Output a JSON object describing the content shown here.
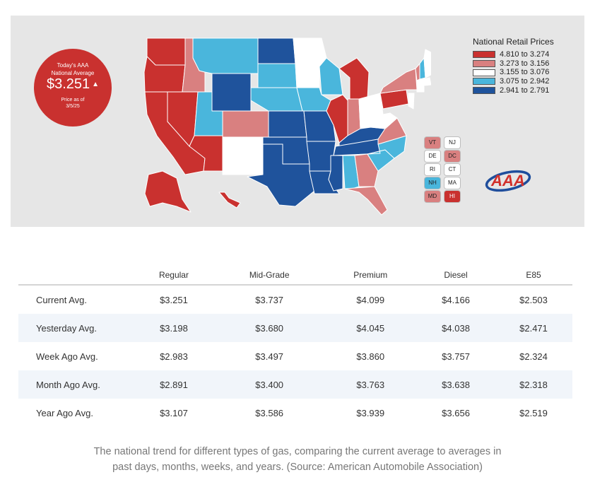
{
  "badge": {
    "line1": "Today's AAA",
    "line2": "National Average",
    "price": "$3.251",
    "trend_icon": "triangle-up-icon",
    "asof_line1": "Price as of",
    "asof_line2": "3/5/25"
  },
  "legend": {
    "title": "National Retail Prices",
    "items": [
      {
        "label": "4.810 to 3.274",
        "color": "#c9312f"
      },
      {
        "label": "3.273 to 3.156",
        "color": "#d98080"
      },
      {
        "label": "3.155 to 3.076",
        "color": "#ffffff"
      },
      {
        "label": "3.075 to 2.942",
        "color": "#4ab6dc"
      },
      {
        "label": "2.941 to 2.791",
        "color": "#1f539c"
      }
    ]
  },
  "map_data": {
    "price_bin_by_state": {
      "WA": 1,
      "OR": 1,
      "CA": 1,
      "NV": 1,
      "AZ": 1,
      "AK": 1,
      "HI": 1,
      "IL": 1,
      "MI": 1,
      "PA": 1,
      "ID": 2,
      "CO": 2,
      "IN": 2,
      "NY": 2,
      "VA": 2,
      "FL": 2,
      "GA": 2,
      "VT": 2,
      "DC": 2,
      "MD": 2,
      "MN": 3,
      "NM": 3,
      "OH": 3,
      "ME": 3,
      "NJ": 3,
      "DE": 3,
      "RI": 3,
      "CT": 3,
      "MA": 3,
      "WV": 3,
      "MT": 4,
      "UT": 4,
      "SD": 4,
      "NE": 4,
      "IA": 4,
      "WI": 4,
      "AL": 4,
      "NC": 4,
      "SC": 4,
      "NH": 4,
      "ND": 5,
      "WY": 5,
      "KS": 5,
      "OK": 5,
      "TX": 5,
      "MO": 5,
      "AR": 5,
      "LA": 5,
      "MS": 5,
      "TN": 5,
      "KY": 5
    },
    "small_states": [
      {
        "code": "VT",
        "bin": 2
      },
      {
        "code": "NJ",
        "bin": 3
      },
      {
        "code": "DE",
        "bin": 3
      },
      {
        "code": "DC",
        "bin": 2
      },
      {
        "code": "RI",
        "bin": 3
      },
      {
        "code": "CT",
        "bin": 3
      },
      {
        "code": "NH",
        "bin": 4
      },
      {
        "code": "MA",
        "bin": 3
      },
      {
        "code": "MD",
        "bin": 2
      },
      {
        "code": "HI",
        "bin": 1
      }
    ]
  },
  "logo": {
    "text": "AAA"
  },
  "table": {
    "columns": [
      "",
      "Regular",
      "Mid-Grade",
      "Premium",
      "Diesel",
      "E85"
    ],
    "rows": [
      [
        "Current Avg.",
        "$3.251",
        "$3.737",
        "$4.099",
        "$4.166",
        "$2.503"
      ],
      [
        "Yesterday Avg.",
        "$3.198",
        "$3.680",
        "$4.045",
        "$4.038",
        "$2.471"
      ],
      [
        "Week Ago Avg.",
        "$2.983",
        "$3.497",
        "$3.860",
        "$3.757",
        "$2.324"
      ],
      [
        "Month Ago Avg.",
        "$2.891",
        "$3.400",
        "$3.763",
        "$3.638",
        "$2.318"
      ],
      [
        "Year Ago Avg.",
        "$3.107",
        "$3.586",
        "$3.939",
        "$3.656",
        "$2.519"
      ]
    ]
  },
  "caption": "The national trend for different types of gas, comparing the current average to averages in past days, months, weeks, and years. (Source: American Automobile Association)"
}
